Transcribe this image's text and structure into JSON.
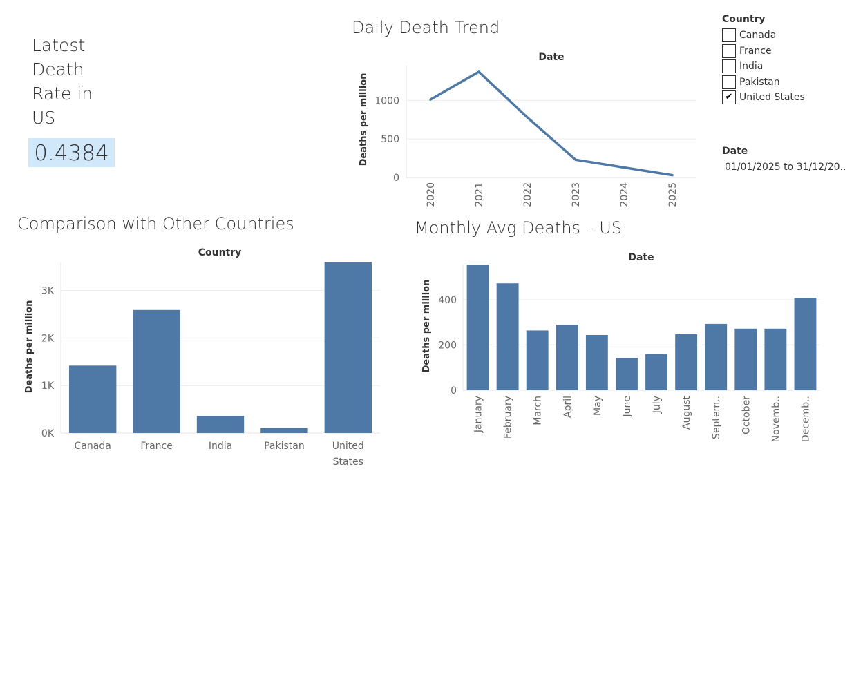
{
  "kpi": {
    "title": "Latest\nDeath\nRate in\nUS",
    "value": "0.4384",
    "highlight_color": "#d1e8fb"
  },
  "filters": {
    "country": {
      "header": "Country",
      "options": [
        {
          "label": "Canada",
          "checked": false
        },
        {
          "label": "France",
          "checked": false
        },
        {
          "label": "India",
          "checked": false
        },
        {
          "label": "Pakistan",
          "checked": false
        },
        {
          "label": "United States",
          "checked": true
        }
      ],
      "check_glyph": "✔"
    },
    "date": {
      "header": "Date",
      "range": "01/01/2025 to 31/12/20.."
    }
  },
  "colors": {
    "bar": "#4e79a7",
    "line": "#4e79a7",
    "grid": "#ececec"
  },
  "chart_data": [
    {
      "id": "daily",
      "type": "line",
      "title": "Daily Death Trend",
      "header": "Date",
      "ylabel": "Deaths per million",
      "x": [
        "2020",
        "2021",
        "2022",
        "2023",
        "2024",
        "2025"
      ],
      "values": [
        1010,
        1370,
        780,
        230,
        130,
        30
      ],
      "yticks": [
        {
          "v": 1000,
          "label": "1000"
        },
        {
          "v": 500,
          "label": "500"
        },
        {
          "v": 0,
          "label": "0"
        }
      ],
      "ylim": [
        0,
        1450
      ],
      "grid": true
    },
    {
      "id": "country",
      "type": "bar",
      "title": "Comparison with Other Countries",
      "header": "Country",
      "ylabel": "Deaths per million",
      "categories": [
        "Canada",
        "France",
        "India",
        "Pakistan",
        "United States"
      ],
      "values": [
        1420,
        2590,
        360,
        110,
        3590
      ],
      "yticks": [
        {
          "v": 3000,
          "label": "3K"
        },
        {
          "v": 2000,
          "label": "2K"
        },
        {
          "v": 1000,
          "label": "1K"
        },
        {
          "v": 0,
          "label": "0K"
        }
      ],
      "ylim": [
        0,
        3590
      ],
      "grid": true
    },
    {
      "id": "monthly",
      "type": "bar",
      "title": "Monthly Avg Deaths – US",
      "header": "Date",
      "ylabel": "Deaths per million",
      "categories": [
        "January",
        "February",
        "March",
        "April",
        "May",
        "June",
        "July",
        "August",
        "Septem..",
        "October",
        "Novemb..",
        "Decemb.."
      ],
      "values": [
        555,
        472,
        264,
        289,
        244,
        143,
        160,
        247,
        293,
        272,
        272,
        408
      ],
      "yticks": [
        {
          "v": 400,
          "label": "400"
        },
        {
          "v": 200,
          "label": "200"
        },
        {
          "v": 0,
          "label": "0"
        }
      ],
      "ylim": [
        0,
        555
      ],
      "grid": true
    }
  ]
}
